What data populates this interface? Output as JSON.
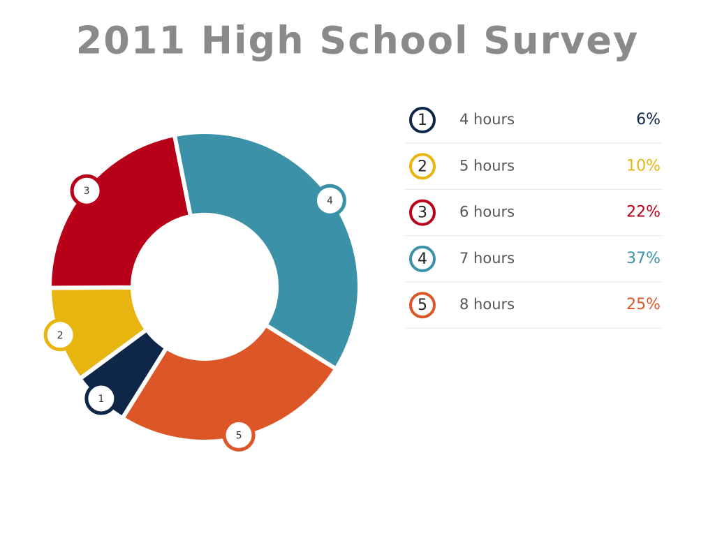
{
  "chart_data": {
    "type": "donut",
    "title": "2011 High School Survey",
    "categories": [
      "4 hours",
      "5 hours",
      "6 hours",
      "7 hours",
      "8 hours"
    ],
    "markers": [
      "1",
      "2",
      "3",
      "4",
      "5"
    ],
    "values": [
      6,
      10,
      22,
      37,
      25
    ],
    "value_labels": [
      "6%",
      "10%",
      "22%",
      "37%",
      "25%"
    ],
    "colors": [
      "#0e2748",
      "#e8b40f",
      "#b80019",
      "#3b92a8",
      "#dc5627"
    ]
  }
}
